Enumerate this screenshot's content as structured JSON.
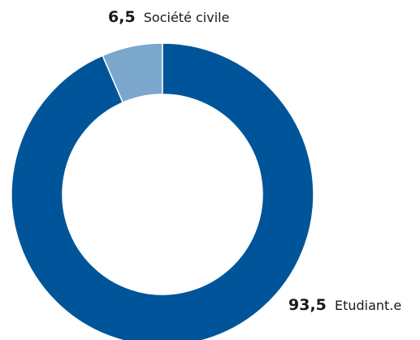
{
  "chart_data": {
    "type": "pie",
    "variant": "donut",
    "title": "",
    "slices": [
      {
        "label": "Société civile",
        "value_label": "6,5",
        "value": 6.5,
        "color": "#7ba7cc"
      },
      {
        "label": "Etudiant.e",
        "value_label": "93,5",
        "value": 93.5,
        "color": "#00559a"
      }
    ]
  }
}
